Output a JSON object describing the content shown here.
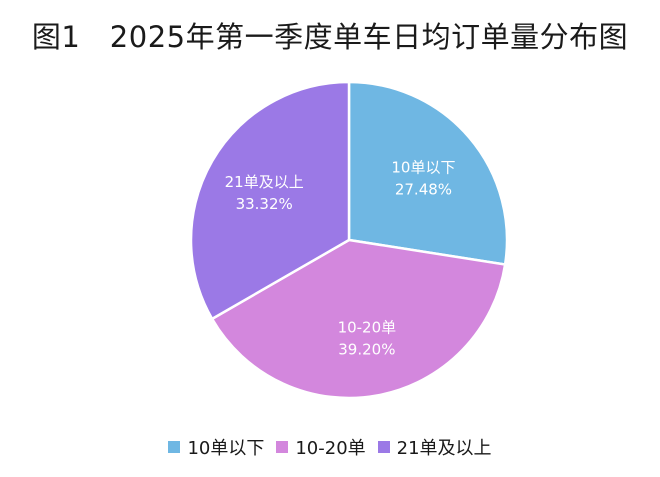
{
  "title": "图1　2025年第一季度单车日均订单量分布图",
  "chart_data": {
    "type": "pie",
    "title": "图1　2025年第一季度单车日均订单量分布图",
    "slices": [
      {
        "name": "10单以下",
        "value": 27.48,
        "label": "27.48%",
        "color": "#6fb7e3"
      },
      {
        "name": "10-20单",
        "value": 39.2,
        "label": "39.20%",
        "color": "#d387dd"
      },
      {
        "name": "21单及以上",
        "value": 33.32,
        "label": "33.32%",
        "color": "#9b79e6"
      }
    ],
    "legend": {
      "position": "bottom"
    }
  }
}
